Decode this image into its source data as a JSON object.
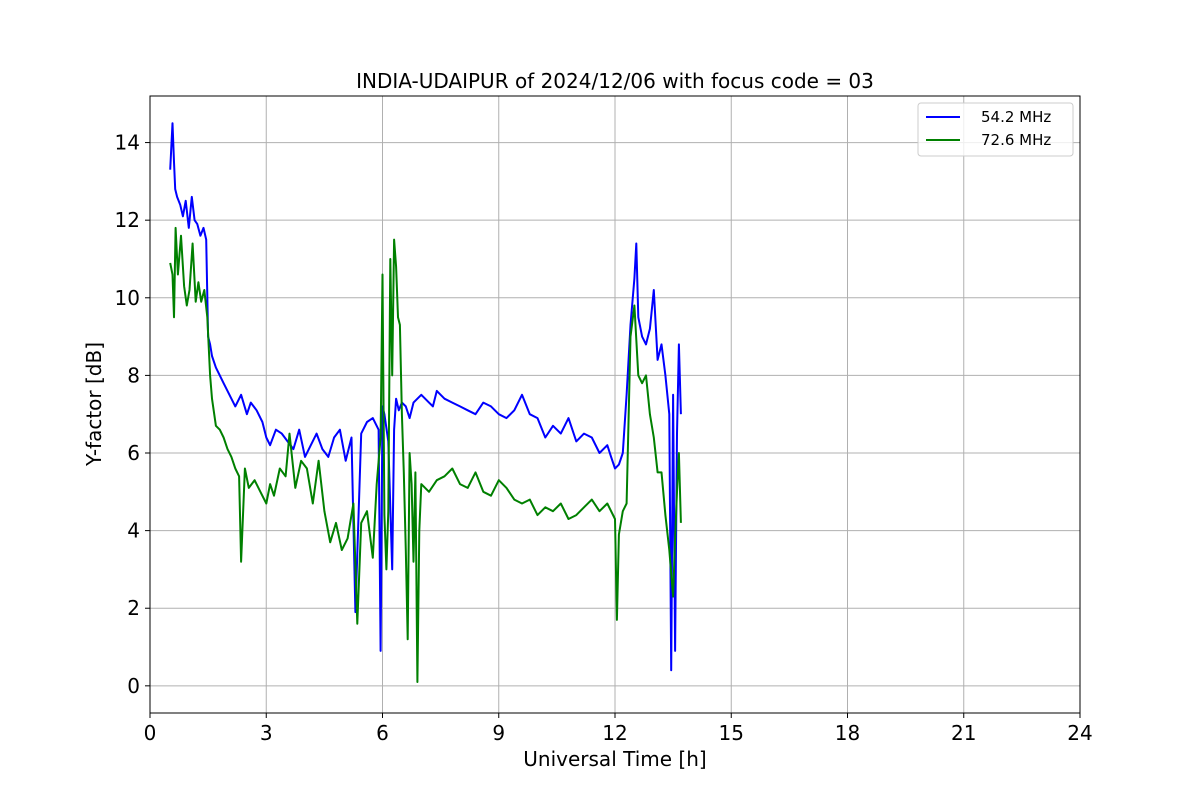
{
  "chart_data": {
    "type": "line",
    "title": "INDIA-UDAIPUR of 2024/12/06 with focus code = 03",
    "xlabel": "Universal Time [h]",
    "ylabel": "Y-factor [dB]",
    "xlim": [
      0,
      24
    ],
    "ylim": [
      -0.7,
      15.2
    ],
    "xticks": [
      0,
      3,
      6,
      9,
      12,
      15,
      18,
      21,
      24
    ],
    "yticks": [
      0,
      2,
      4,
      6,
      8,
      10,
      12,
      14
    ],
    "grid": true,
    "legend_position": "top-right",
    "series": [
      {
        "name": "54.2 MHz",
        "color": "#0000ff",
        "x": [
          0.52,
          0.58,
          0.62,
          0.65,
          0.7,
          0.78,
          0.85,
          0.92,
          1.0,
          1.08,
          1.15,
          1.22,
          1.3,
          1.38,
          1.45,
          1.5,
          1.55,
          1.6,
          1.7,
          1.8,
          1.9,
          2.0,
          2.1,
          2.2,
          2.35,
          2.5,
          2.6,
          2.75,
          2.9,
          3.0,
          3.1,
          3.25,
          3.4,
          3.55,
          3.7,
          3.85,
          4.0,
          4.15,
          4.3,
          4.45,
          4.6,
          4.75,
          4.9,
          5.05,
          5.2,
          5.3,
          5.45,
          5.6,
          5.75,
          5.9,
          5.95,
          6.0,
          6.05,
          6.15,
          6.25,
          6.3,
          6.35,
          6.42,
          6.5,
          6.6,
          6.7,
          6.8,
          6.9,
          7.0,
          7.2,
          7.3,
          7.4,
          7.6,
          7.8,
          8.0,
          8.2,
          8.4,
          8.6,
          8.8,
          9.0,
          9.2,
          9.4,
          9.6,
          9.8,
          10.0,
          10.2,
          10.4,
          10.6,
          10.8,
          11.0,
          11.2,
          11.4,
          11.6,
          11.8,
          11.9,
          12.0,
          12.1,
          12.2,
          12.3,
          12.4,
          12.5,
          12.55,
          12.6,
          12.7,
          12.8,
          12.9,
          13.0,
          13.1,
          13.2,
          13.3,
          13.4,
          13.45,
          13.5,
          13.55,
          13.6,
          13.65,
          13.7
        ],
        "y": [
          13.3,
          14.5,
          13.5,
          12.8,
          12.6,
          12.4,
          12.1,
          12.5,
          11.8,
          12.6,
          12.0,
          11.9,
          11.6,
          11.8,
          11.5,
          9.0,
          8.8,
          8.5,
          8.2,
          8.0,
          7.8,
          7.6,
          7.4,
          7.2,
          7.5,
          7.0,
          7.3,
          7.1,
          6.8,
          6.4,
          6.2,
          6.6,
          6.5,
          6.3,
          6.1,
          6.6,
          5.9,
          6.2,
          6.5,
          6.1,
          5.9,
          6.4,
          6.6,
          5.8,
          6.4,
          1.9,
          6.5,
          6.8,
          6.9,
          6.6,
          0.9,
          7.2,
          7.0,
          6.3,
          3.0,
          6.6,
          7.4,
          7.1,
          7.3,
          7.2,
          6.9,
          7.3,
          7.4,
          7.5,
          7.3,
          7.2,
          7.6,
          7.4,
          7.3,
          7.2,
          7.1,
          7.0,
          7.3,
          7.2,
          7.0,
          6.9,
          7.1,
          7.5,
          7.0,
          6.9,
          6.4,
          6.7,
          6.5,
          6.9,
          6.3,
          6.5,
          6.4,
          6.0,
          6.2,
          5.9,
          5.6,
          5.7,
          6.0,
          7.5,
          9.3,
          10.5,
          11.4,
          9.5,
          9.0,
          8.8,
          9.2,
          10.2,
          8.4,
          8.8,
          8.0,
          7.0,
          0.4,
          7.5,
          0.9,
          6.5,
          8.8,
          7.0
        ]
      },
      {
        "name": "72.6 MHz",
        "color": "#008000",
        "x": [
          0.52,
          0.58,
          0.62,
          0.66,
          0.72,
          0.8,
          0.88,
          0.95,
          1.02,
          1.1,
          1.18,
          1.25,
          1.32,
          1.4,
          1.48,
          1.55,
          1.6,
          1.7,
          1.8,
          1.9,
          2.0,
          2.1,
          2.2,
          2.3,
          2.35,
          2.45,
          2.55,
          2.7,
          2.85,
          3.0,
          3.1,
          3.2,
          3.35,
          3.5,
          3.6,
          3.75,
          3.9,
          4.05,
          4.2,
          4.35,
          4.5,
          4.65,
          4.8,
          4.95,
          5.1,
          5.25,
          5.35,
          5.45,
          5.6,
          5.75,
          5.85,
          5.95,
          6.0,
          6.05,
          6.1,
          6.15,
          6.2,
          6.25,
          6.3,
          6.35,
          6.4,
          6.45,
          6.5,
          6.55,
          6.6,
          6.65,
          6.7,
          6.75,
          6.8,
          6.85,
          6.9,
          6.95,
          7.0,
          7.2,
          7.4,
          7.6,
          7.8,
          8.0,
          8.2,
          8.4,
          8.6,
          8.8,
          9.0,
          9.2,
          9.4,
          9.6,
          9.8,
          10.0,
          10.2,
          10.4,
          10.6,
          10.8,
          11.0,
          11.2,
          11.4,
          11.6,
          11.8,
          12.0,
          12.05,
          12.1,
          12.2,
          12.3,
          12.4,
          12.5,
          12.6,
          12.7,
          12.8,
          12.9,
          13.0,
          13.1,
          13.2,
          13.3,
          13.4,
          13.5,
          13.55,
          13.6,
          13.65,
          13.7
        ],
        "y": [
          10.9,
          10.6,
          9.5,
          11.8,
          10.6,
          11.6,
          10.3,
          9.8,
          10.2,
          11.4,
          9.9,
          10.4,
          9.9,
          10.2,
          9.5,
          8.0,
          7.4,
          6.7,
          6.6,
          6.4,
          6.1,
          5.9,
          5.6,
          5.4,
          3.2,
          5.6,
          5.1,
          5.3,
          5.0,
          4.7,
          5.2,
          4.9,
          5.6,
          5.4,
          6.5,
          5.1,
          5.8,
          5.6,
          4.7,
          5.8,
          4.5,
          3.7,
          4.2,
          3.5,
          3.8,
          4.7,
          1.6,
          4.2,
          4.5,
          3.3,
          5.2,
          6.4,
          10.6,
          4.4,
          3.0,
          4.5,
          11.0,
          8.0,
          11.5,
          10.8,
          9.5,
          9.3,
          7.0,
          5.5,
          3.5,
          1.2,
          6.0,
          5.2,
          3.2,
          5.5,
          0.1,
          4.0,
          5.2,
          5.0,
          5.3,
          5.4,
          5.6,
          5.2,
          5.1,
          5.5,
          5.0,
          4.9,
          5.3,
          5.1,
          4.8,
          4.7,
          4.8,
          4.4,
          4.6,
          4.5,
          4.7,
          4.3,
          4.4,
          4.6,
          4.8,
          4.5,
          4.7,
          4.3,
          1.7,
          3.9,
          4.5,
          4.7,
          9.0,
          9.8,
          8.0,
          7.8,
          8.0,
          7.0,
          6.4,
          5.5,
          5.5,
          4.4,
          3.5,
          2.3,
          3.8,
          5.0,
          6.0,
          4.2
        ]
      }
    ]
  }
}
